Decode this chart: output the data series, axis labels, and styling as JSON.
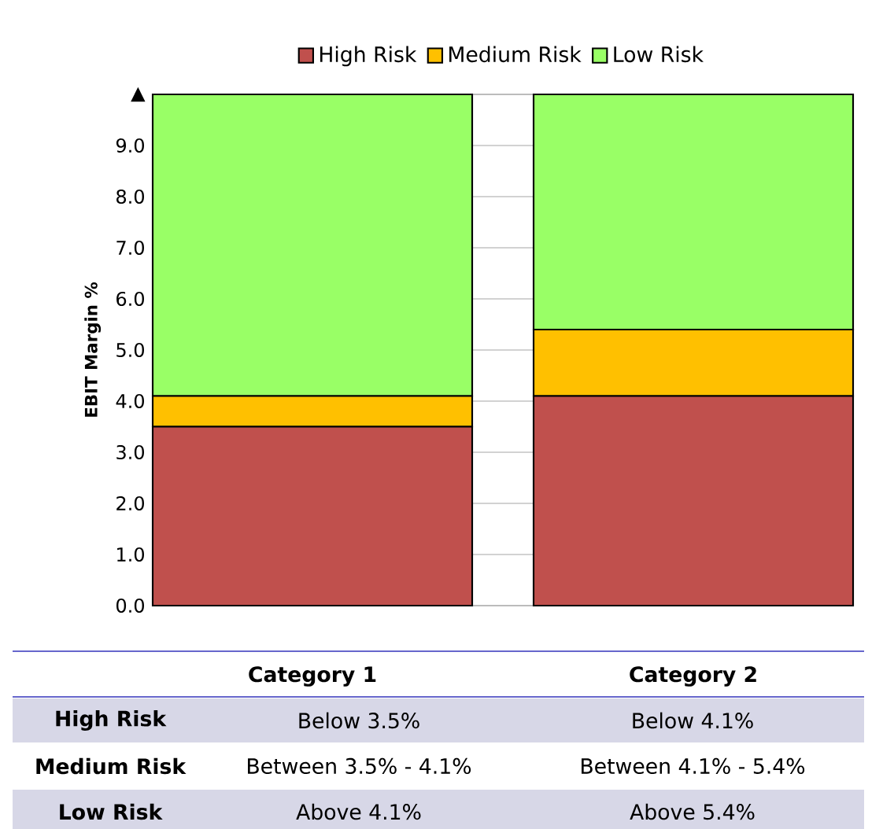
{
  "chart_data": {
    "type": "bar",
    "stacked": true,
    "ylabel": "EBIT Margin %",
    "categories": [
      "Category 1",
      "Category 2"
    ],
    "series": [
      {
        "name": "High Risk",
        "color": "#c0504d",
        "values": [
          3.5,
          4.1
        ]
      },
      {
        "name": "Medium Risk",
        "color": "#ffc000",
        "values": [
          0.6,
          1.3
        ]
      },
      {
        "name": "Low Risk",
        "color": "#99ff66",
        "values": [
          5.9,
          4.6
        ]
      }
    ],
    "ylim": [
      0,
      10
    ],
    "yticks": [
      {
        "value": 0,
        "label": "0.0"
      },
      {
        "value": 1,
        "label": "1.0"
      },
      {
        "value": 2,
        "label": "2.0"
      },
      {
        "value": 3,
        "label": "3.0"
      },
      {
        "value": 4,
        "label": "4.0"
      },
      {
        "value": 5,
        "label": "5.0"
      },
      {
        "value": 6,
        "label": "6.0"
      },
      {
        "value": 7,
        "label": "7.0"
      },
      {
        "value": 8,
        "label": "8.0"
      },
      {
        "value": 9,
        "label": "9.0"
      },
      {
        "value": 10,
        "label": "▲"
      }
    ],
    "grid": "y",
    "legend": "top",
    "annotations": [
      "Below 3.5%",
      "Below 4.1%",
      "Between 3.5% - 4.1%",
      "Between 4.1% - 5.4%",
      "Above 4.1%",
      "Above 5.4%"
    ]
  }
}
